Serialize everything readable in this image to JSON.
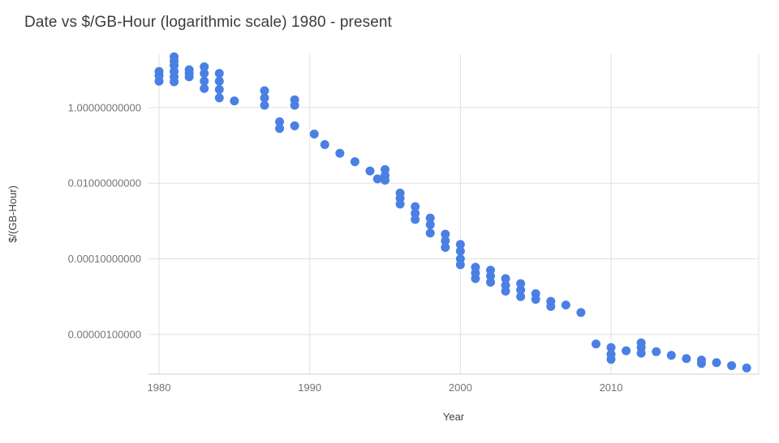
{
  "chart_data": {
    "type": "scatter",
    "title": "Date vs $/GB-Hour (logarithmic scale) 1980 - present",
    "xlabel": "Year",
    "ylabel": "$/(GB-Hour)",
    "y_scale": "log",
    "grid": true,
    "legend": "none",
    "xlim": [
      1979.3,
      2019.8
    ],
    "ylim_log10": [
      -7.05,
      1.41
    ],
    "x_ticks": [
      {
        "value": 1980,
        "label": "1980"
      },
      {
        "value": 1990,
        "label": "1990"
      },
      {
        "value": 2000,
        "label": "2000"
      },
      {
        "value": 2010,
        "label": "2010"
      }
    ],
    "y_ticks": [
      {
        "value": 1.0,
        "label": "1.00000000000"
      },
      {
        "value": 0.01,
        "label": "0.01000000000"
      },
      {
        "value": 0.0001,
        "label": "0.00010000000"
      },
      {
        "value": 1e-06,
        "label": "0.00000100000"
      }
    ],
    "colors": {
      "point": "#4a80e4",
      "grid": "#e0e0e0",
      "axis_line": "#cfcfcf",
      "tick_text": "#757575",
      "title_text": "#3c3c3c",
      "axis_title_text": "#424242"
    },
    "point_radius": 5.5,
    "points": [
      [
        1980,
        9
      ],
      [
        1980,
        7
      ],
      [
        1980,
        5
      ],
      [
        1981,
        22
      ],
      [
        1981,
        17
      ],
      [
        1981,
        13
      ],
      [
        1981,
        9
      ],
      [
        1981,
        6.5
      ],
      [
        1981,
        4.8
      ],
      [
        1982,
        10
      ],
      [
        1982,
        8
      ],
      [
        1982,
        6.5
      ],
      [
        1983,
        12
      ],
      [
        1983,
        8
      ],
      [
        1983,
        5
      ],
      [
        1983,
        3.2
      ],
      [
        1984,
        8
      ],
      [
        1984,
        5
      ],
      [
        1984,
        3
      ],
      [
        1984,
        1.8
      ],
      [
        1985,
        1.5
      ],
      [
        1987,
        2.8
      ],
      [
        1987,
        1.8
      ],
      [
        1987,
        1.15
      ],
      [
        1988,
        0.42
      ],
      [
        1988,
        0.28
      ],
      [
        1989,
        1.6
      ],
      [
        1989,
        1.15
      ],
      [
        1989,
        0.33
      ],
      [
        1990.3,
        0.2
      ],
      [
        1991,
        0.105
      ],
      [
        1992,
        0.062
      ],
      [
        1993,
        0.037
      ],
      [
        1994,
        0.021
      ],
      [
        1994.5,
        0.013
      ],
      [
        1995,
        0.023
      ],
      [
        1995,
        0.016
      ],
      [
        1995,
        0.012
      ],
      [
        1996,
        0.0055
      ],
      [
        1996,
        0.004
      ],
      [
        1996,
        0.0028
      ],
      [
        1997,
        0.0024
      ],
      [
        1997,
        0.0016
      ],
      [
        1997,
        0.0011
      ],
      [
        1998,
        0.0012
      ],
      [
        1998,
        0.0008
      ],
      [
        1998,
        0.00048
      ],
      [
        1999,
        0.00045
      ],
      [
        1999,
        0.0003
      ],
      [
        1999,
        0.0002
      ],
      [
        2000,
        0.00024
      ],
      [
        2000,
        0.00016
      ],
      [
        2000,
        0.0001
      ],
      [
        2000,
        7e-05
      ],
      [
        2001,
        6e-05
      ],
      [
        2001,
        4.2e-05
      ],
      [
        2001,
        3e-05
      ],
      [
        2002,
        5e-05
      ],
      [
        2002,
        3.5e-05
      ],
      [
        2002,
        2.4e-05
      ],
      [
        2003,
        3e-05
      ],
      [
        2003,
        2e-05
      ],
      [
        2003,
        1.4e-05
      ],
      [
        2004,
        2.2e-05
      ],
      [
        2004,
        1.5e-05
      ],
      [
        2004,
        1e-05
      ],
      [
        2005,
        1.2e-05
      ],
      [
        2005,
        8.5e-06
      ],
      [
        2006,
        7.5e-06
      ],
      [
        2006,
        5.5e-06
      ],
      [
        2007,
        6e-06
      ],
      [
        2008,
        3.8e-06
      ],
      [
        2009,
        5.6e-07
      ],
      [
        2010,
        4.5e-07
      ],
      [
        2010,
        3e-07
      ],
      [
        2010,
        2.2e-07
      ],
      [
        2011,
        3.7e-07
      ],
      [
        2012,
        6e-07
      ],
      [
        2012,
        4.5e-07
      ],
      [
        2012,
        3.2e-07
      ],
      [
        2013,
        3.5e-07
      ],
      [
        2014,
        2.8e-07
      ],
      [
        2015,
        2.3e-07
      ],
      [
        2016,
        2.1e-07
      ],
      [
        2016,
        1.7e-07
      ],
      [
        2017,
        1.8e-07
      ],
      [
        2018,
        1.5e-07
      ],
      [
        2019,
        1.3e-07
      ]
    ]
  }
}
